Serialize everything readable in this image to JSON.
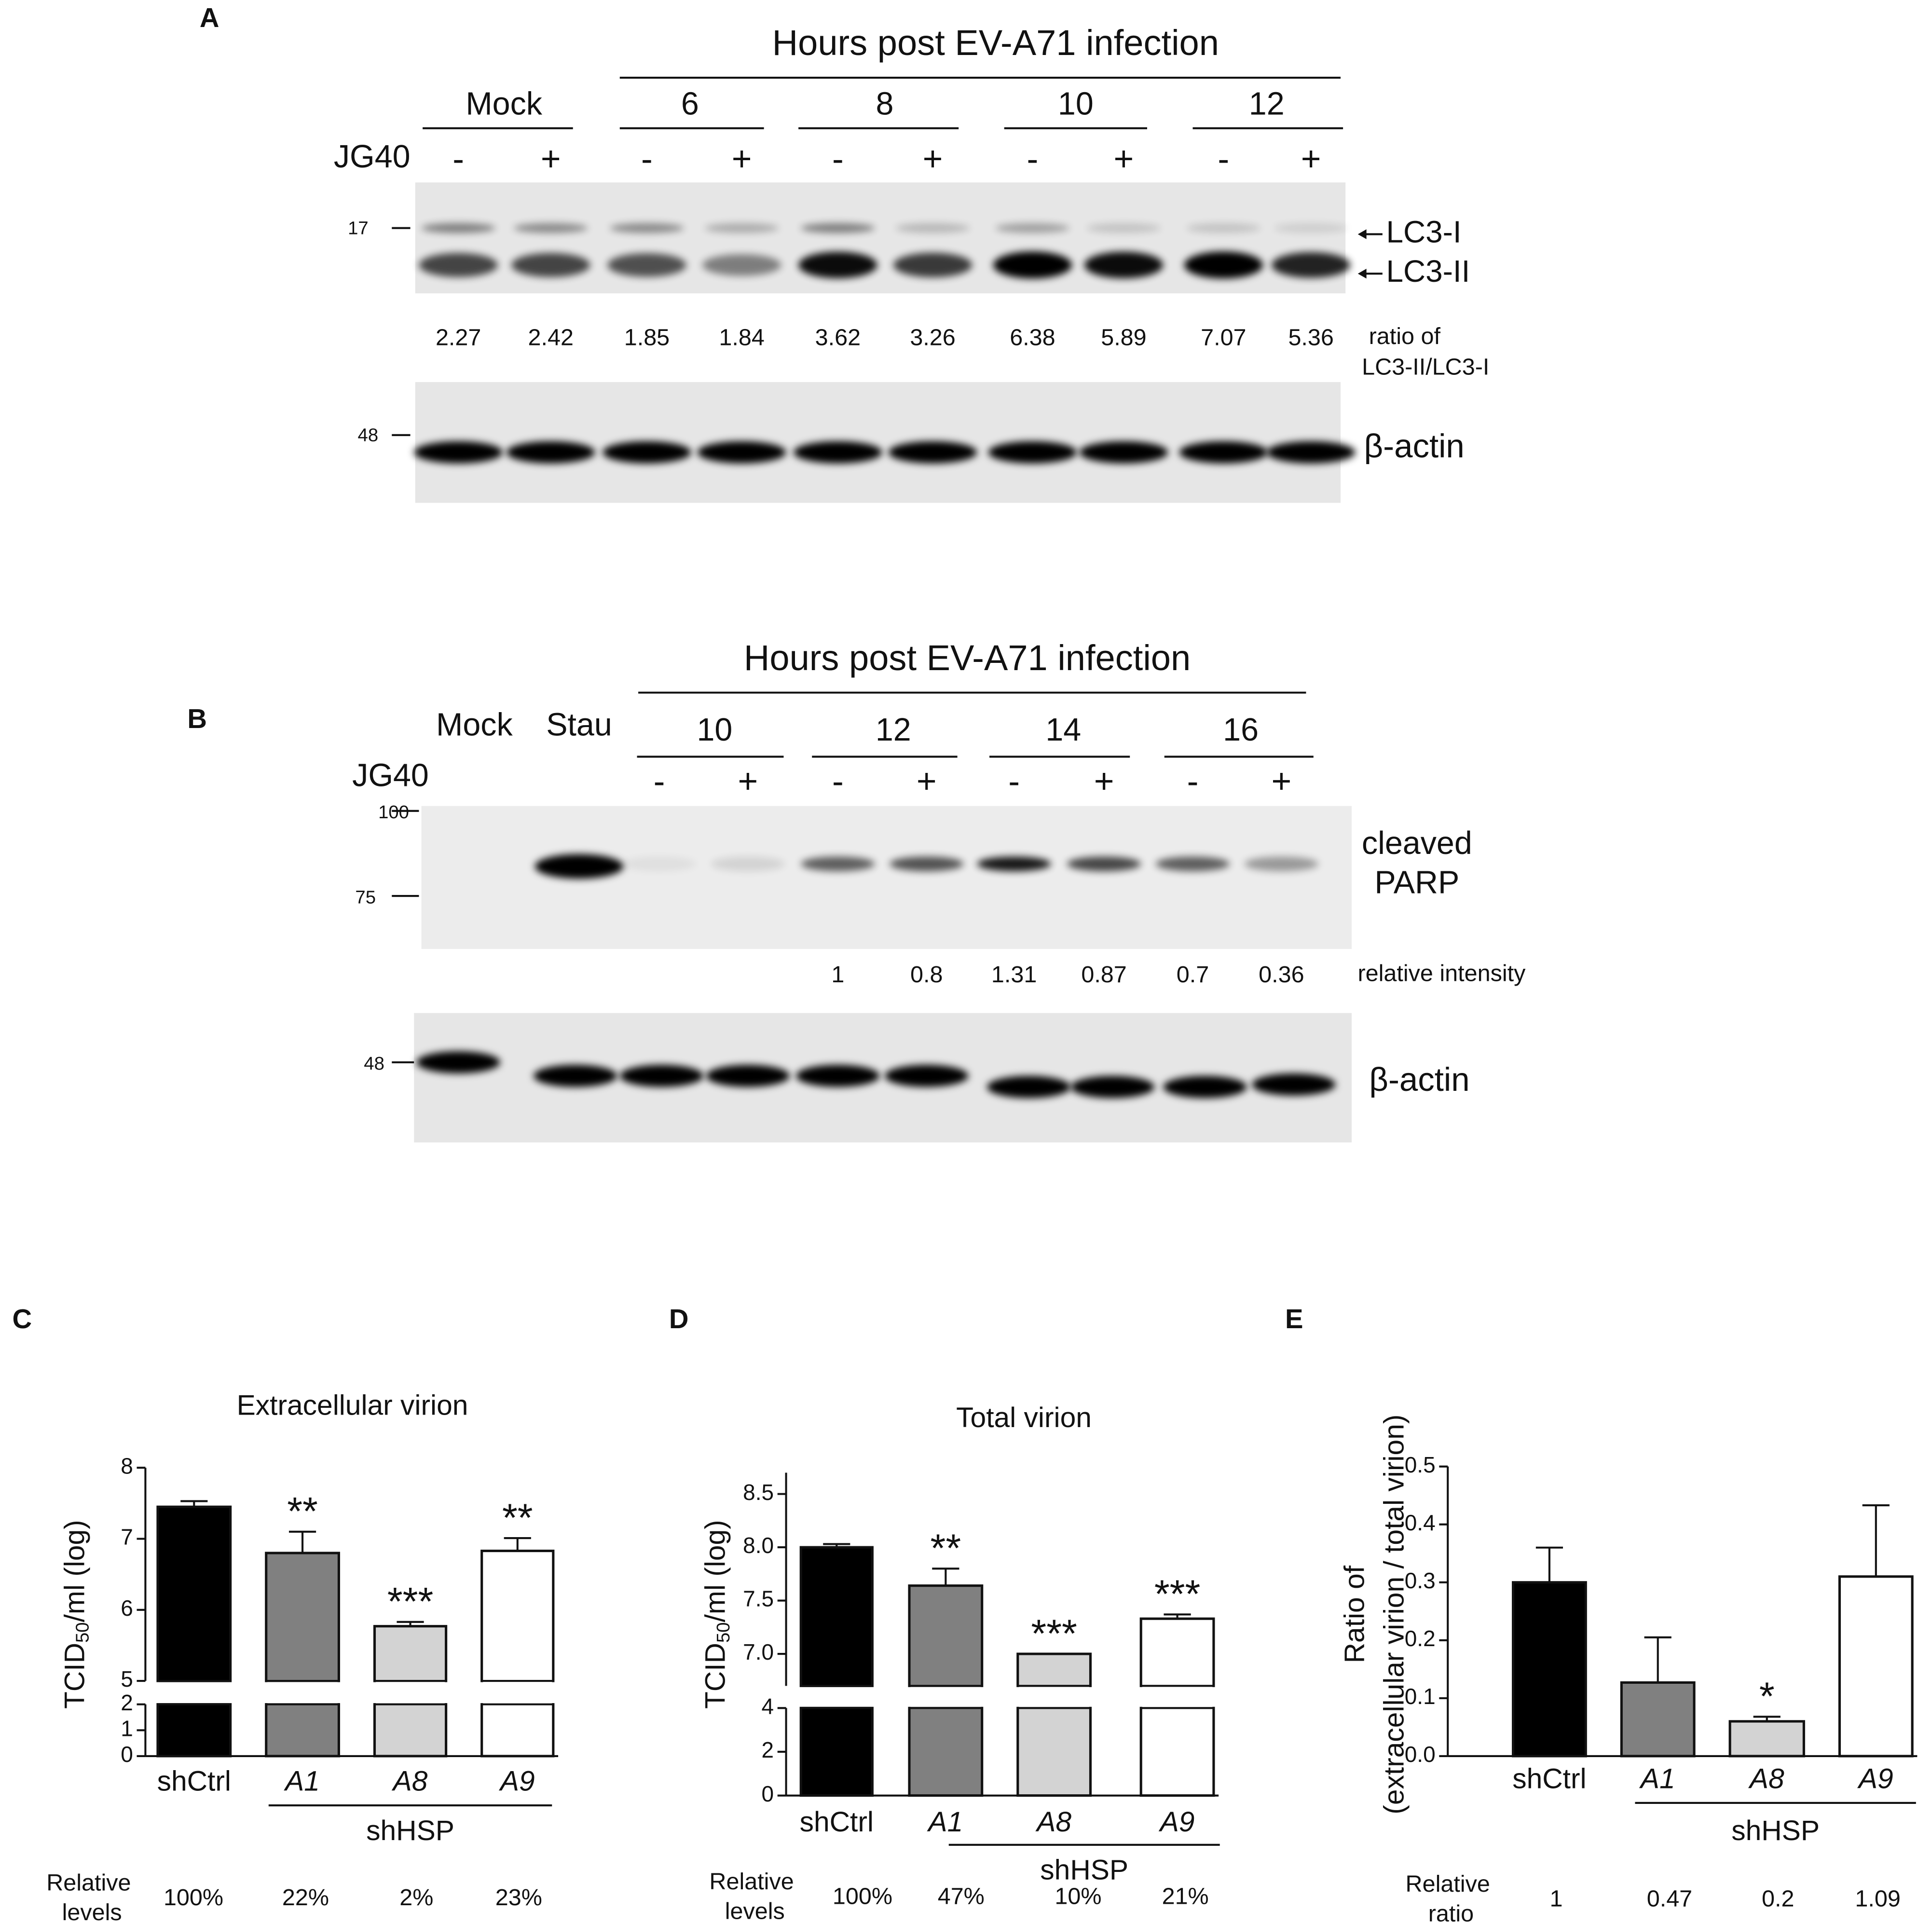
{
  "panels": {
    "A": {
      "label": "A",
      "header": "Hours post EV-A71 infection",
      "groups": [
        "Mock",
        "6",
        "8",
        "10",
        "12"
      ],
      "treatment": "JG40",
      "signs": [
        "-",
        "+",
        "-",
        "+",
        "-",
        "+",
        "-",
        "+",
        "-",
        "+"
      ],
      "markers": [
        "17",
        "48"
      ],
      "bands": [
        "LC3-I",
        "LC3-II"
      ],
      "ratios": [
        "2.27",
        "2.42",
        "1.85",
        "1.84",
        "3.62",
        "3.26",
        "6.38",
        "5.89",
        "7.07",
        "5.36"
      ],
      "ratio_label": [
        "ratio of",
        "LC3-II/LC3-I"
      ],
      "loading": "β-actin"
    },
    "B": {
      "label": "B",
      "header": "Hours post EV-A71 infection",
      "controls": [
        "Mock",
        "Stau"
      ],
      "groups": [
        "10",
        "12",
        "14",
        "16"
      ],
      "treatment": "JG40",
      "signs": [
        "-",
        "+",
        "-",
        "+",
        "-",
        "+",
        "-",
        "+"
      ],
      "markers": [
        "100",
        "75",
        "48"
      ],
      "band": [
        "cleaved",
        "PARP"
      ],
      "intensities": [
        "1",
        "0.8",
        "1.31",
        "0.87",
        "0.7",
        "0.36"
      ],
      "intensity_label": "relative intensity",
      "loading": "β-actin"
    }
  },
  "chart_data": [
    {
      "type": "bar",
      "panel_label": "C",
      "title": "Extracellular virion",
      "y_label": [
        "TCID50/ml (log)"
      ],
      "categories": [
        "shCtrl",
        "A1",
        "A8",
        "A9"
      ],
      "group_label": "shHSP",
      "values": [
        7.45,
        6.8,
        5.77,
        6.83
      ],
      "errors": [
        0.08,
        0.3,
        0.06,
        0.18
      ],
      "annotations": [
        null,
        "**",
        "***",
        "**"
      ],
      "colors": [
        "#000000",
        "#808080",
        "#d3d3d3",
        "#ffffff"
      ],
      "ylim": [
        0,
        8
      ],
      "y_break": [
        2,
        5
      ],
      "yticks": [
        0,
        1,
        2,
        5,
        6,
        7,
        8
      ],
      "relative_label": "Relative levels",
      "relative_values": [
        "100%",
        "22%",
        "2%",
        "23%"
      ]
    },
    {
      "type": "bar",
      "panel_label": "D",
      "title": "Total virion",
      "y_label": [
        "TCID50/ml (log)"
      ],
      "categories": [
        "shCtrl",
        "A1",
        "A8",
        "A9"
      ],
      "group_label": "shHSP",
      "values": [
        8.0,
        7.64,
        7.0,
        7.33
      ],
      "errors": [
        0.03,
        0.16,
        0,
        0.04
      ],
      "annotations": [
        null,
        "**",
        "***",
        "***"
      ],
      "colors": [
        "#000000",
        "#808080",
        "#d3d3d3",
        "#ffffff"
      ],
      "ylim": [
        0,
        8.7
      ],
      "y_break": [
        4,
        6.7
      ],
      "yticks": [
        0,
        2,
        4,
        {
          "value": 7,
          "label": "7.0"
        },
        {
          "value": 7.5,
          "label": "7.5"
        },
        {
          "value": 8,
          "label": "8.0"
        },
        {
          "value": 8.5,
          "label": "8.5"
        }
      ],
      "relative_label": "Relative levels",
      "relative_values": [
        "100%",
        "47%",
        "10%",
        "21%"
      ]
    },
    {
      "type": "bar",
      "panel_label": "E",
      "y_label": [
        "Ratio of",
        "(extracellular virion / total virion)"
      ],
      "categories": [
        "shCtrl",
        "A1",
        "A8",
        "A9"
      ],
      "group_label": "shHSP",
      "values": [
        0.3,
        0.127,
        0.06,
        0.31
      ],
      "errors": [
        0.06,
        0.078,
        0.008,
        0.123
      ],
      "annotations": [
        null,
        null,
        "*",
        null
      ],
      "colors": [
        "#000000",
        "#808080",
        "#d3d3d3",
        "#ffffff"
      ],
      "ylim": [
        0,
        0.5
      ],
      "yticks": [
        {
          "value": 0,
          "label": "0.0"
        },
        0.1,
        0.2,
        0.3,
        0.4,
        0.5
      ],
      "relative_label": "Relative ratio",
      "relative_values": [
        "1",
        "0.47",
        "0.2",
        "1.09"
      ]
    }
  ]
}
